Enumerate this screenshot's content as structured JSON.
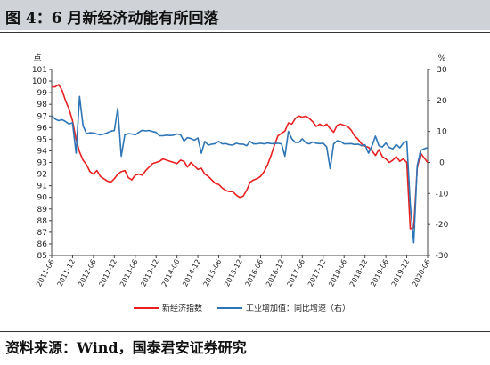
{
  "figure": {
    "title": "图 4：6 月新经济动能有所回落",
    "source": "资料来源：Wind，国泰君安证券研究"
  },
  "chart_data": {
    "type": "line",
    "title": "",
    "xlabel": "",
    "ylabel_left": "点",
    "ylabel_right": "%",
    "ylim_left": [
      85,
      101
    ],
    "ylim_right": [
      -30,
      30
    ],
    "yticks_left": [
      85,
      86,
      87,
      88,
      89,
      90,
      91,
      92,
      93,
      94,
      95,
      96,
      97,
      98,
      99,
      100,
      101
    ],
    "yticks_right": [
      -30,
      -20,
      -10,
      0,
      10,
      20,
      30
    ],
    "x_range": [
      "2011-06",
      "2020-06"
    ],
    "x_ticks": [
      "2011-06",
      "2011-12",
      "2012-06",
      "2012-12",
      "2013-06",
      "2013-12",
      "2014-06",
      "2014-12",
      "2015-06",
      "2015-12",
      "2016-06",
      "2016-12",
      "2017-06",
      "2017-12",
      "2018-06",
      "2018-12",
      "2019-06",
      "2019-12",
      "2020-06"
    ],
    "grid": false,
    "legend_position": "bottom",
    "series": [
      {
        "name": "新经济指数",
        "axis": "left",
        "color": "#e8201f",
        "points": [
          [
            "2011-06",
            99.5
          ],
          [
            "2011-07",
            99.5
          ],
          [
            "2011-08",
            99.7
          ],
          [
            "2011-09",
            99.2
          ],
          [
            "2011-10",
            98.3
          ],
          [
            "2011-11",
            97.6
          ],
          [
            "2011-12",
            96.6
          ],
          [
            "2012-01",
            95.0
          ],
          [
            "2012-02",
            93.9
          ],
          [
            "2012-03",
            93.2
          ],
          [
            "2012-04",
            92.8
          ],
          [
            "2012-05",
            92.2
          ],
          [
            "2012-06",
            92.0
          ],
          [
            "2012-07",
            92.3
          ],
          [
            "2012-08",
            91.8
          ],
          [
            "2012-09",
            91.6
          ],
          [
            "2012-10",
            91.4
          ],
          [
            "2012-11",
            91.3
          ],
          [
            "2012-12",
            91.6
          ],
          [
            "2013-01",
            92.0
          ],
          [
            "2013-02",
            92.2
          ],
          [
            "2013-03",
            92.3
          ],
          [
            "2013-04",
            91.7
          ],
          [
            "2013-05",
            91.5
          ],
          [
            "2013-06",
            91.9
          ],
          [
            "2013-07",
            92.0
          ],
          [
            "2013-08",
            91.9
          ],
          [
            "2013-09",
            92.3
          ],
          [
            "2013-10",
            92.6
          ],
          [
            "2013-11",
            92.9
          ],
          [
            "2013-12",
            93.0
          ],
          [
            "2014-01",
            93.1
          ],
          [
            "2014-02",
            93.3
          ],
          [
            "2014-03",
            93.2
          ],
          [
            "2014-04",
            93.1
          ],
          [
            "2014-05",
            93.0
          ],
          [
            "2014-06",
            92.9
          ],
          [
            "2014-07",
            93.2
          ],
          [
            "2014-08",
            93.1
          ],
          [
            "2014-09",
            92.6
          ],
          [
            "2014-10",
            93.0
          ],
          [
            "2014-11",
            92.7
          ],
          [
            "2014-12",
            92.4
          ],
          [
            "2015-01",
            92.5
          ],
          [
            "2015-02",
            92.0
          ],
          [
            "2015-03",
            91.8
          ],
          [
            "2015-04",
            91.5
          ],
          [
            "2015-05",
            91.2
          ],
          [
            "2015-06",
            91.1
          ],
          [
            "2015-07",
            90.8
          ],
          [
            "2015-08",
            90.6
          ],
          [
            "2015-09",
            90.5
          ],
          [
            "2015-10",
            90.5
          ],
          [
            "2015-11",
            90.2
          ],
          [
            "2015-12",
            90.0
          ],
          [
            "2016-01",
            90.1
          ],
          [
            "2016-02",
            90.6
          ],
          [
            "2016-03",
            91.3
          ],
          [
            "2016-04",
            91.5
          ],
          [
            "2016-05",
            91.6
          ],
          [
            "2016-06",
            91.8
          ],
          [
            "2016-07",
            92.2
          ],
          [
            "2016-08",
            92.8
          ],
          [
            "2016-09",
            93.6
          ],
          [
            "2016-10",
            94.5
          ],
          [
            "2016-11",
            95.3
          ],
          [
            "2016-12",
            95.5
          ],
          [
            "2017-01",
            95.7
          ],
          [
            "2017-02",
            96.4
          ],
          [
            "2017-03",
            96.3
          ],
          [
            "2017-04",
            96.8
          ],
          [
            "2017-05",
            97.0
          ],
          [
            "2017-06",
            96.9
          ],
          [
            "2017-07",
            97.0
          ],
          [
            "2017-08",
            96.8
          ],
          [
            "2017-09",
            96.5
          ],
          [
            "2017-10",
            96.1
          ],
          [
            "2017-11",
            96.3
          ],
          [
            "2017-12",
            96.1
          ],
          [
            "2018-01",
            96.3
          ],
          [
            "2018-02",
            95.9
          ],
          [
            "2018-03",
            95.6
          ],
          [
            "2018-04",
            96.2
          ],
          [
            "2018-05",
            96.3
          ],
          [
            "2018-06",
            96.2
          ],
          [
            "2018-07",
            96.1
          ],
          [
            "2018-08",
            95.8
          ],
          [
            "2018-09",
            95.3
          ],
          [
            "2018-10",
            95.0
          ],
          [
            "2018-11",
            94.6
          ],
          [
            "2018-12",
            94.4
          ],
          [
            "2019-01",
            94.3
          ],
          [
            "2019-02",
            94.0
          ],
          [
            "2019-03",
            93.6
          ],
          [
            "2019-04",
            94.1
          ],
          [
            "2019-05",
            93.5
          ],
          [
            "2019-06",
            93.3
          ],
          [
            "2019-07",
            93.0
          ],
          [
            "2019-08",
            93.2
          ],
          [
            "2019-09",
            93.5
          ],
          [
            "2019-10",
            93.1
          ],
          [
            "2019-11",
            93.3
          ],
          [
            "2019-12",
            93.0
          ],
          [
            "2020-01",
            87.3
          ],
          [
            "2020-02",
            87.4
          ],
          [
            "2020-03",
            92.5
          ],
          [
            "2020-04",
            93.8
          ],
          [
            "2020-05",
            93.4
          ],
          [
            "2020-06",
            93.0
          ]
        ]
      },
      {
        "name": "工业增加值：同比增速（右）",
        "axis": "right",
        "color": "#2e75b6",
        "points": [
          [
            "2011-06",
            15.1
          ],
          [
            "2011-07",
            14.0
          ],
          [
            "2011-08",
            13.5
          ],
          [
            "2011-09",
            13.8
          ],
          [
            "2011-10",
            13.2
          ],
          [
            "2011-11",
            12.4
          ],
          [
            "2011-12",
            12.8
          ],
          [
            "2012-01",
            3.0
          ],
          [
            "2012-02",
            21.3
          ],
          [
            "2012-03",
            11.9
          ],
          [
            "2012-04",
            9.3
          ],
          [
            "2012-05",
            9.6
          ],
          [
            "2012-06",
            9.5
          ],
          [
            "2012-07",
            9.2
          ],
          [
            "2012-08",
            8.9
          ],
          [
            "2012-09",
            9.2
          ],
          [
            "2012-10",
            9.6
          ],
          [
            "2012-11",
            10.1
          ],
          [
            "2012-12",
            10.3
          ],
          [
            "2013-01",
            17.5
          ],
          [
            "2013-02",
            2.0
          ],
          [
            "2013-03",
            8.9
          ],
          [
            "2013-04",
            9.3
          ],
          [
            "2013-05",
            9.2
          ],
          [
            "2013-06",
            8.9
          ],
          [
            "2013-07",
            9.7
          ],
          [
            "2013-08",
            10.4
          ],
          [
            "2013-09",
            10.2
          ],
          [
            "2013-10",
            10.3
          ],
          [
            "2013-11",
            10.0
          ],
          [
            "2013-12",
            9.7
          ],
          [
            "2014-01",
            8.6
          ],
          [
            "2014-02",
            8.6
          ],
          [
            "2014-03",
            8.8
          ],
          [
            "2014-04",
            8.7
          ],
          [
            "2014-05",
            8.8
          ],
          [
            "2014-06",
            9.2
          ],
          [
            "2014-07",
            9.0
          ],
          [
            "2014-08",
            6.9
          ],
          [
            "2014-09",
            8.0
          ],
          [
            "2014-10",
            7.7
          ],
          [
            "2014-11",
            7.2
          ],
          [
            "2014-12",
            7.9
          ],
          [
            "2015-01",
            3.0
          ],
          [
            "2015-02",
            6.8
          ],
          [
            "2015-03",
            5.6
          ],
          [
            "2015-04",
            5.9
          ],
          [
            "2015-05",
            6.1
          ],
          [
            "2015-06",
            6.8
          ],
          [
            "2015-07",
            6.0
          ],
          [
            "2015-08",
            6.1
          ],
          [
            "2015-09",
            5.7
          ],
          [
            "2015-10",
            5.6
          ],
          [
            "2015-11",
            6.2
          ],
          [
            "2015-12",
            5.9
          ],
          [
            "2016-01",
            5.9
          ],
          [
            "2016-02",
            5.4
          ],
          [
            "2016-03",
            6.8
          ],
          [
            "2016-04",
            6.0
          ],
          [
            "2016-05",
            6.0
          ],
          [
            "2016-06",
            6.2
          ],
          [
            "2016-07",
            6.0
          ],
          [
            "2016-08",
            6.3
          ],
          [
            "2016-09",
            6.1
          ],
          [
            "2016-10",
            6.1
          ],
          [
            "2016-11",
            6.2
          ],
          [
            "2016-12",
            6.0
          ],
          [
            "2017-01",
            2.0
          ],
          [
            "2017-02",
            10.0
          ],
          [
            "2017-03",
            7.6
          ],
          [
            "2017-04",
            6.5
          ],
          [
            "2017-05",
            6.5
          ],
          [
            "2017-06",
            7.6
          ],
          [
            "2017-07",
            6.4
          ],
          [
            "2017-08",
            6.0
          ],
          [
            "2017-09",
            6.6
          ],
          [
            "2017-10",
            6.2
          ],
          [
            "2017-11",
            6.1
          ],
          [
            "2017-12",
            6.2
          ],
          [
            "2018-01",
            5.0
          ],
          [
            "2018-02",
            -2.0
          ],
          [
            "2018-03",
            6.0
          ],
          [
            "2018-04",
            7.0
          ],
          [
            "2018-05",
            6.8
          ],
          [
            "2018-06",
            6.0
          ],
          [
            "2018-07",
            6.0
          ],
          [
            "2018-08",
            6.1
          ],
          [
            "2018-09",
            5.8
          ],
          [
            "2018-10",
            5.9
          ],
          [
            "2018-11",
            5.4
          ],
          [
            "2018-12",
            5.7
          ],
          [
            "2019-01",
            3.0
          ],
          [
            "2019-02",
            5.3
          ],
          [
            "2019-03",
            8.5
          ],
          [
            "2019-04",
            5.4
          ],
          [
            "2019-05",
            5.0
          ],
          [
            "2019-06",
            6.3
          ],
          [
            "2019-07",
            4.8
          ],
          [
            "2019-08",
            4.4
          ],
          [
            "2019-09",
            5.8
          ],
          [
            "2019-10",
            4.7
          ],
          [
            "2019-11",
            6.2
          ],
          [
            "2019-12",
            6.9
          ],
          [
            "2020-01",
            -13.5
          ],
          [
            "2020-02",
            -25.9
          ],
          [
            "2020-03",
            -1.1
          ],
          [
            "2020-04",
            3.9
          ],
          [
            "2020-05",
            4.4
          ],
          [
            "2020-06",
            4.8
          ]
        ]
      }
    ]
  }
}
